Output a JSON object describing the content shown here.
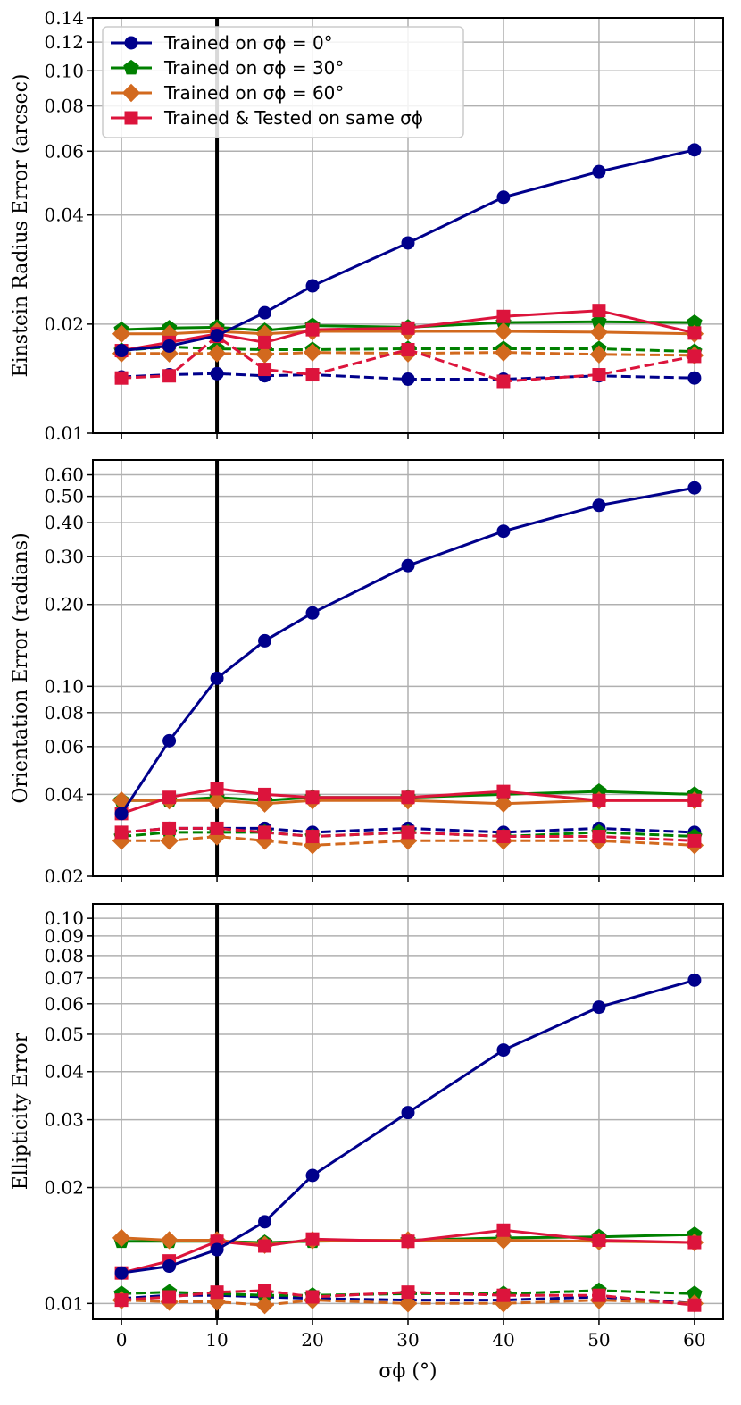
{
  "colors": {
    "trained0": "#00008b",
    "trained30": "#008000",
    "trained60": "#d2691e",
    "same": "#dc143c"
  },
  "legend": {
    "trained0": "Trained on σϕ = 0°",
    "trained30": "Trained on σϕ = 30°",
    "trained60": "Trained on σϕ = 60°",
    "same": "Trained & Tested on same σϕ"
  },
  "xlabel": "σϕ (°)",
  "chart_data": [
    {
      "type": "line",
      "ylabel": "Einstein Radius Error (arcsec)",
      "yscale": "log",
      "ylim": [
        0.01,
        0.14
      ],
      "yticks": [
        0.01,
        0.02,
        0.04,
        0.06,
        0.08,
        0.1,
        0.12,
        0.14
      ],
      "ytick_labels": [
        "0.01",
        "0.02",
        "0.04",
        "0.06",
        "0.08",
        "0.10",
        "0.12",
        "0.14"
      ],
      "x": [
        0,
        5,
        10,
        15,
        20,
        30,
        40,
        50,
        60
      ],
      "xlim": [
        -3,
        63
      ],
      "xticks": [
        0,
        10,
        20,
        30,
        40,
        50,
        60
      ],
      "vline_x": 10,
      "series": [
        {
          "name": "Trained on σϕ = 0°",
          "key": "trained0",
          "style": "solid",
          "marker": "circle",
          "values": [
            0.0169,
            0.0174,
            0.0186,
            0.0215,
            0.0255,
            0.0335,
            0.0448,
            0.0527,
            0.0605
          ]
        },
        {
          "name": "Trained on σϕ = 0° (dashed)",
          "key": "trained0",
          "style": "dashed",
          "marker": "circle",
          "values": [
            0.0143,
            0.0145,
            0.0146,
            0.0144,
            0.0145,
            0.0141,
            0.0141,
            0.0144,
            0.0142
          ]
        },
        {
          "name": "Trained on σϕ = 30°",
          "key": "trained30",
          "style": "solid",
          "marker": "pentagon",
          "values": [
            0.0193,
            0.0195,
            0.0196,
            0.0192,
            0.0198,
            0.0196,
            0.0202,
            0.0203,
            0.0202
          ]
        },
        {
          "name": "Trained on σϕ = 30° (dashed)",
          "key": "trained30",
          "style": "dashed",
          "marker": "pentagon",
          "values": [
            0.0169,
            0.0173,
            0.0171,
            0.017,
            0.017,
            0.0171,
            0.0171,
            0.0171,
            0.0168
          ]
        },
        {
          "name": "Trained on σϕ = 60°",
          "key": "trained60",
          "style": "solid",
          "marker": "diamond",
          "values": [
            0.0188,
            0.0188,
            0.0191,
            0.0188,
            0.0191,
            0.0191,
            0.0191,
            0.019,
            0.0188
          ]
        },
        {
          "name": "Trained on σϕ = 60° (dashed)",
          "key": "trained60",
          "style": "dashed",
          "marker": "diamond",
          "values": [
            0.0166,
            0.0166,
            0.0166,
            0.0165,
            0.0167,
            0.0166,
            0.0167,
            0.0165,
            0.0164
          ]
        },
        {
          "name": "Trained & Tested on same σϕ",
          "key": "same",
          "style": "solid",
          "marker": "square",
          "values": [
            0.0169,
            0.0178,
            0.0188,
            0.0178,
            0.0193,
            0.0195,
            0.021,
            0.0218,
            0.0189
          ]
        },
        {
          "name": "Trained & Tested on same σϕ (dashed)",
          "key": "same",
          "style": "dashed",
          "marker": "square",
          "values": [
            0.0142,
            0.0144,
            0.0185,
            0.015,
            0.0145,
            0.017,
            0.0139,
            0.0145,
            0.0163
          ]
        }
      ]
    },
    {
      "type": "line",
      "ylabel": "Orientation Error (radians)",
      "yscale": "log",
      "ylim": [
        0.02,
        0.68
      ],
      "yticks": [
        0.02,
        0.04,
        0.06,
        0.08,
        0.1,
        0.2,
        0.3,
        0.4,
        0.5,
        0.6
      ],
      "ytick_labels": [
        "0.02",
        "0.04",
        "0.06",
        "0.08",
        "0.10",
        "0.20",
        "0.30",
        "0.40",
        "0.50",
        "0.60"
      ],
      "x": [
        0,
        5,
        10,
        15,
        20,
        30,
        40,
        50,
        60
      ],
      "xlim": [
        -3,
        63
      ],
      "xticks": [
        0,
        10,
        20,
        30,
        40,
        50,
        60
      ],
      "vline_x": 10,
      "series": [
        {
          "name": "Trained on σϕ = 0°",
          "key": "trained0",
          "style": "solid",
          "marker": "circle",
          "values": [
            0.034,
            0.063,
            0.107,
            0.147,
            0.186,
            0.278,
            0.372,
            0.463,
            0.537
          ]
        },
        {
          "name": "Trained on σϕ = 0° (dashed)",
          "key": "trained0",
          "style": "dashed",
          "marker": "circle",
          "values": [
            0.029,
            0.03,
            0.03,
            0.03,
            0.029,
            0.03,
            0.029,
            0.03,
            0.029
          ]
        },
        {
          "name": "Trained on σϕ = 30°",
          "key": "trained30",
          "style": "solid",
          "marker": "pentagon",
          "values": [
            0.038,
            0.038,
            0.039,
            0.038,
            0.039,
            0.039,
            0.04,
            0.041,
            0.04
          ]
        },
        {
          "name": "Trained on σϕ = 30° (dashed)",
          "key": "trained30",
          "style": "dashed",
          "marker": "pentagon",
          "values": [
            0.028,
            0.029,
            0.029,
            0.029,
            0.028,
            0.029,
            0.028,
            0.029,
            0.028
          ]
        },
        {
          "name": "Trained on σϕ = 60°",
          "key": "trained60",
          "style": "solid",
          "marker": "diamond",
          "values": [
            0.038,
            0.038,
            0.038,
            0.037,
            0.038,
            0.038,
            0.037,
            0.038,
            0.038
          ]
        },
        {
          "name": "Trained on σϕ = 60° (dashed)",
          "key": "trained60",
          "style": "dashed",
          "marker": "diamond",
          "values": [
            0.027,
            0.027,
            0.028,
            0.027,
            0.026,
            0.027,
            0.027,
            0.027,
            0.026
          ]
        },
        {
          "name": "Trained & Tested on same σϕ",
          "key": "same",
          "style": "solid",
          "marker": "square",
          "values": [
            0.034,
            0.039,
            0.042,
            0.04,
            0.039,
            0.039,
            0.041,
            0.038,
            0.038
          ]
        },
        {
          "name": "Trained & Tested on same σϕ (dashed)",
          "key": "same",
          "style": "dashed",
          "marker": "square",
          "values": [
            0.029,
            0.03,
            0.03,
            0.029,
            0.028,
            0.029,
            0.028,
            0.028,
            0.027
          ]
        }
      ]
    },
    {
      "type": "line",
      "ylabel": "Ellipticity Error",
      "yscale": "log",
      "ylim": [
        0.0091,
        0.109
      ],
      "yticks": [
        0.01,
        0.02,
        0.03,
        0.04,
        0.05,
        0.06,
        0.07,
        0.08,
        0.09,
        0.1
      ],
      "ytick_labels": [
        "0.01",
        "0.02",
        "0.03",
        "0.04",
        "0.05",
        "0.06",
        "0.07",
        "0.08",
        "0.09",
        "0.10"
      ],
      "x": [
        0,
        5,
        10,
        15,
        20,
        30,
        40,
        50,
        60
      ],
      "xlim": [
        -3,
        63
      ],
      "xticks": [
        0,
        10,
        20,
        30,
        40,
        50,
        60
      ],
      "vline_x": 10,
      "series": [
        {
          "name": "Trained on σϕ = 0°",
          "key": "trained0",
          "style": "solid",
          "marker": "circle",
          "values": [
            0.012,
            0.0125,
            0.0138,
            0.0163,
            0.0215,
            0.0313,
            0.0455,
            0.0588,
            0.0691
          ]
        },
        {
          "name": "Trained on σϕ = 0° (dashed)",
          "key": "trained0",
          "style": "dashed",
          "marker": "circle",
          "values": [
            0.0103,
            0.0105,
            0.0105,
            0.0104,
            0.0103,
            0.0102,
            0.0102,
            0.0104,
            0.01
          ]
        },
        {
          "name": "Trained on σϕ = 30°",
          "key": "trained30",
          "style": "solid",
          "marker": "pentagon",
          "values": [
            0.0145,
            0.0145,
            0.0145,
            0.0144,
            0.0145,
            0.0146,
            0.0148,
            0.0149,
            0.0151
          ]
        },
        {
          "name": "Trained on σϕ = 30° (dashed)",
          "key": "trained30",
          "style": "dashed",
          "marker": "pentagon",
          "values": [
            0.0106,
            0.0107,
            0.0106,
            0.0105,
            0.0105,
            0.0106,
            0.0106,
            0.0108,
            0.0106
          ]
        },
        {
          "name": "Trained on σϕ = 60°",
          "key": "trained60",
          "style": "solid",
          "marker": "diamond",
          "values": [
            0.0148,
            0.0146,
            0.0146,
            0.0142,
            0.0146,
            0.0146,
            0.0146,
            0.0145,
            0.0144
          ]
        },
        {
          "name": "Trained on σϕ = 60° (dashed)",
          "key": "trained60",
          "style": "dashed",
          "marker": "diamond",
          "values": [
            0.0102,
            0.0101,
            0.0101,
            0.0099,
            0.0102,
            0.01,
            0.01,
            0.0102,
            0.01
          ]
        },
        {
          "name": "Trained & Tested on same σϕ",
          "key": "same",
          "style": "solid",
          "marker": "square",
          "values": [
            0.012,
            0.0129,
            0.0145,
            0.0141,
            0.0147,
            0.0145,
            0.0155,
            0.0146,
            0.0144
          ]
        },
        {
          "name": "Trained & Tested on same σϕ (dashed)",
          "key": "same",
          "style": "dashed",
          "marker": "square",
          "values": [
            0.0102,
            0.0104,
            0.0107,
            0.0108,
            0.0104,
            0.0107,
            0.0105,
            0.0105,
            0.0099
          ]
        }
      ]
    }
  ]
}
